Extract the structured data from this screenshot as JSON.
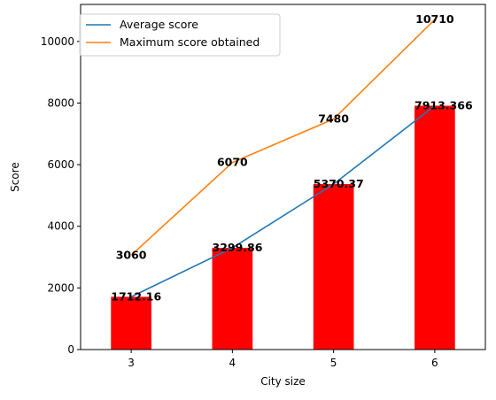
{
  "chart_data": {
    "type": "bar",
    "title": "",
    "xlabel": "City size",
    "ylabel": "Score",
    "categories": [
      "3",
      "4",
      "5",
      "6"
    ],
    "ylim": [
      0,
      11200
    ],
    "yticks": [
      0,
      2000,
      4000,
      6000,
      8000,
      10000
    ],
    "bar_series": {
      "values": [
        1712.16,
        3299.86,
        5370.37,
        7913.366
      ],
      "labels": [
        "1712.16",
        "3299.86",
        "5370.37",
        "7913.366"
      ],
      "color": "#ff0000"
    },
    "series": [
      {
        "name": "Average score",
        "type": "line",
        "values": [
          1712.16,
          3299.86,
          5370.37,
          7913.366
        ],
        "color": "#1f77b4"
      },
      {
        "name": "Maximum score obtained",
        "type": "line",
        "values": [
          3060,
          6070,
          7480,
          10710
        ],
        "labels": [
          "3060",
          "6070",
          "7480",
          "10710"
        ],
        "color": "#ff7f0e"
      }
    ],
    "legend_position": "top-left",
    "grid": false
  }
}
